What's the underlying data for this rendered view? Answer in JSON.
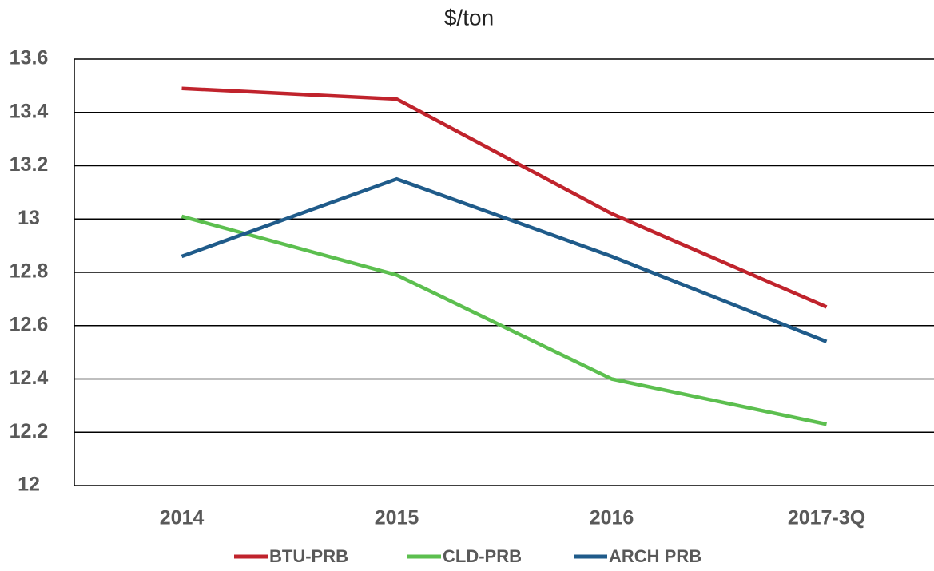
{
  "chart_data": {
    "type": "line",
    "title": "$/ton",
    "categories": [
      "2014",
      "2015",
      "2016",
      "2017-3Q"
    ],
    "series": [
      {
        "name": "BTU-PRB",
        "color": "#c0232c",
        "values": [
          13.49,
          13.45,
          13.02,
          12.67
        ]
      },
      {
        "name": "CLD-PRB",
        "color": "#5cbf4f",
        "values": [
          13.01,
          12.79,
          12.4,
          12.23
        ]
      },
      {
        "name": "ARCH PRB",
        "color": "#1f5b8a",
        "values": [
          12.86,
          13.15,
          12.86,
          12.54
        ]
      }
    ],
    "ylim": [
      12,
      13.6
    ],
    "yticks": [
      12,
      12.2,
      12.4,
      12.6,
      12.8,
      13,
      13.2,
      13.4,
      13.6
    ],
    "grid": true
  }
}
